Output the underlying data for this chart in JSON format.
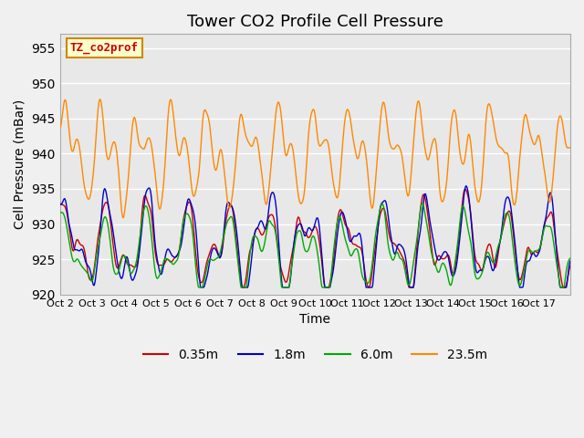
{
  "title": "Tower CO2 Profile Cell Pressure",
  "xlabel": "Time",
  "ylabel": "Cell Pressure (mBar)",
  "ylim": [
    920,
    957
  ],
  "yticks": [
    920,
    925,
    930,
    935,
    940,
    945,
    950,
    955
  ],
  "xtick_labels": [
    "Oct 2",
    "Oct 3",
    "Oct 4",
    "Oct 5",
    "Oct 6",
    "Oct 7",
    "Oct 8",
    "Oct 9",
    "Oct 10",
    "Oct 11",
    "Oct 12",
    "Oct 13",
    "Oct 14",
    "Oct 15",
    "Oct 16",
    "Oct 17"
  ],
  "series_labels": [
    "0.35m",
    "1.8m",
    "6.0m",
    "23.5m"
  ],
  "series_colors": [
    "#cc0000",
    "#0000cc",
    "#00aa00",
    "#ff8800"
  ],
  "legend_box_color": "#ffffcc",
  "legend_box_edge": "#cc8800",
  "legend_label": "TZ_co2prof",
  "bg_color": "#e8e8e8",
  "grid_color": "#ffffff",
  "title_fontsize": 13,
  "n_days": 16
}
